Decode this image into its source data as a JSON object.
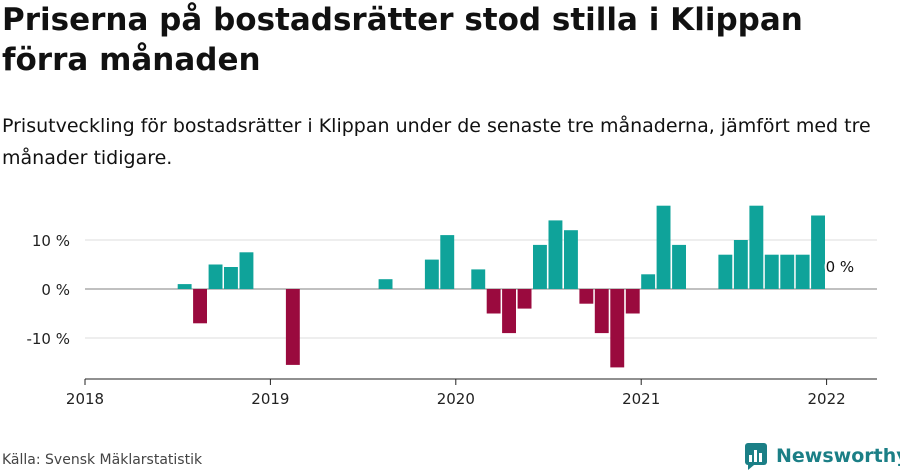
{
  "title": "Priserna på bostadsrätter stod stilla i Klippan förra månaden",
  "subtitle": "Prisutveckling för bostadsrätter i Klippan under de senaste tre månaderna, jämfört med tre månader tidigare.",
  "source": "Källa: Svensk Mäklarstatistik",
  "brand": "Newsworthy",
  "colors": {
    "positive": "#0fa39a",
    "negative": "#9a0a3e",
    "brand": "#1b7f86"
  },
  "chart_data": {
    "type": "bar",
    "x": [
      "2018-01",
      "2018-02",
      "2018-03",
      "2018-04",
      "2018-05",
      "2018-06",
      "2018-07",
      "2018-08",
      "2018-09",
      "2018-10",
      "2018-11",
      "2018-12",
      "2019-01",
      "2019-02",
      "2019-03",
      "2019-04",
      "2019-05",
      "2019-06",
      "2019-07",
      "2019-08",
      "2019-09",
      "2019-10",
      "2019-11",
      "2019-12",
      "2020-01",
      "2020-02",
      "2020-03",
      "2020-04",
      "2020-05",
      "2020-06",
      "2020-07",
      "2020-08",
      "2020-09",
      "2020-10",
      "2020-11",
      "2020-12",
      "2021-01",
      "2021-02",
      "2021-03",
      "2021-04",
      "2021-05",
      "2021-06",
      "2021-07",
      "2021-08",
      "2021-09",
      "2021-10",
      "2021-11",
      "2021-12",
      "2022-01"
    ],
    "values": [
      null,
      null,
      null,
      null,
      null,
      null,
      1,
      -7,
      5,
      4.5,
      7.5,
      null,
      null,
      -15.5,
      null,
      null,
      null,
      null,
      null,
      2,
      null,
      null,
      6,
      11,
      null,
      4,
      -5,
      -9,
      -4,
      9,
      14,
      12,
      -3,
      -9,
      -16,
      -5,
      3,
      17,
      9,
      null,
      null,
      7,
      10,
      17,
      7,
      7,
      7,
      15,
      0
    ],
    "xticks": [
      "2018",
      "2019",
      "2020",
      "2021",
      "2022"
    ],
    "yticks": [
      {
        "value": 10,
        "label": "10 %"
      },
      {
        "value": 0,
        "label": "0 %"
      },
      {
        "value": -10,
        "label": "-10 %"
      }
    ],
    "ylim": [
      -18,
      20
    ],
    "last_label": "0 %",
    "grid": true
  }
}
